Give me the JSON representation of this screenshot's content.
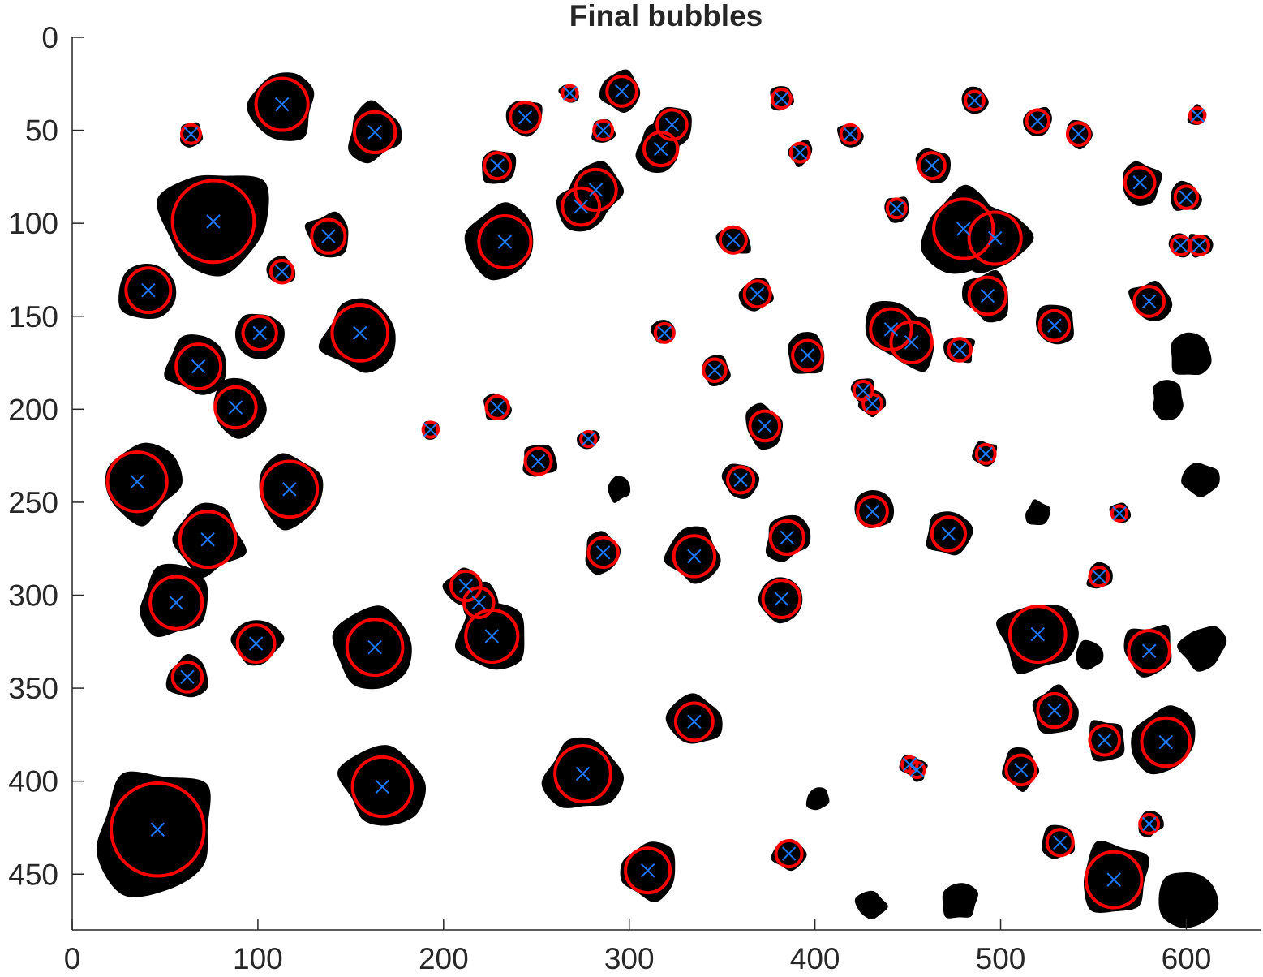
{
  "chart_data": {
    "type": "scatter",
    "title": "Final bubbles",
    "xlabel": "",
    "ylabel": "",
    "xlim": [
      0,
      640
    ],
    "ylim": [
      0,
      480
    ],
    "y_axis_reversed": true,
    "grid": false,
    "x_ticks": [
      0,
      100,
      200,
      300,
      400,
      500,
      600
    ],
    "y_ticks": [
      0,
      50,
      100,
      150,
      200,
      250,
      300,
      350,
      400,
      450
    ],
    "colors": {
      "blob": "#000000",
      "circle": "#ff0000",
      "center_marker": "#1e78ff",
      "axis": "#262626"
    },
    "center_marker": "x",
    "bubbles": [
      {
        "x": 113,
        "y": 36,
        "r": 14
      },
      {
        "x": 64,
        "y": 52,
        "r": 5
      },
      {
        "x": 163,
        "y": 51,
        "r": 11
      },
      {
        "x": 76,
        "y": 99,
        "r": 22
      },
      {
        "x": 138,
        "y": 107,
        "r": 9
      },
      {
        "x": 113,
        "y": 126,
        "r": 6
      },
      {
        "x": 41,
        "y": 136,
        "r": 12
      },
      {
        "x": 101,
        "y": 159,
        "r": 9
      },
      {
        "x": 155,
        "y": 159,
        "r": 15
      },
      {
        "x": 68,
        "y": 177,
        "r": 12
      },
      {
        "x": 88,
        "y": 199,
        "r": 11
      },
      {
        "x": 35,
        "y": 239,
        "r": 16
      },
      {
        "x": 117,
        "y": 243,
        "r": 15
      },
      {
        "x": 73,
        "y": 270,
        "r": 15
      },
      {
        "x": 56,
        "y": 304,
        "r": 14
      },
      {
        "x": 99,
        "y": 326,
        "r": 10
      },
      {
        "x": 62,
        "y": 344,
        "r": 8
      },
      {
        "x": 163,
        "y": 328,
        "r": 15
      },
      {
        "x": 167,
        "y": 403,
        "r": 16
      },
      {
        "x": 46,
        "y": 426,
        "r": 25
      },
      {
        "x": 268,
        "y": 30,
        "r": 4
      },
      {
        "x": 296,
        "y": 29,
        "r": 8
      },
      {
        "x": 244,
        "y": 43,
        "r": 8
      },
      {
        "x": 286,
        "y": 50,
        "r": 5
      },
      {
        "x": 323,
        "y": 47,
        "r": 8
      },
      {
        "x": 317,
        "y": 60,
        "r": 9
      },
      {
        "x": 229,
        "y": 69,
        "r": 7
      },
      {
        "x": 282,
        "y": 82,
        "r": 11
      },
      {
        "x": 274,
        "y": 91,
        "r": 10
      },
      {
        "x": 233,
        "y": 110,
        "r": 14
      },
      {
        "x": 319,
        "y": 159,
        "r": 5
      },
      {
        "x": 193,
        "y": 211,
        "r": 4
      },
      {
        "x": 229,
        "y": 199,
        "r": 6
      },
      {
        "x": 278,
        "y": 216,
        "r": 4
      },
      {
        "x": 251,
        "y": 228,
        "r": 7
      },
      {
        "x": 286,
        "y": 277,
        "r": 8
      },
      {
        "x": 212,
        "y": 295,
        "r": 8
      },
      {
        "x": 219,
        "y": 304,
        "r": 8
      },
      {
        "x": 226,
        "y": 322,
        "r": 14
      },
      {
        "x": 275,
        "y": 396,
        "r": 15
      },
      {
        "x": 310,
        "y": 448,
        "r": 12
      },
      {
        "x": 335,
        "y": 279,
        "r": 11
      },
      {
        "x": 335,
        "y": 368,
        "r": 10
      },
      {
        "x": 382,
        "y": 33,
        "r": 5
      },
      {
        "x": 392,
        "y": 62,
        "r": 5
      },
      {
        "x": 419,
        "y": 52,
        "r": 5
      },
      {
        "x": 356,
        "y": 109,
        "r": 7
      },
      {
        "x": 369,
        "y": 138,
        "r": 7
      },
      {
        "x": 346,
        "y": 179,
        "r": 6
      },
      {
        "x": 396,
        "y": 171,
        "r": 8
      },
      {
        "x": 373,
        "y": 209,
        "r": 8
      },
      {
        "x": 360,
        "y": 238,
        "r": 7
      },
      {
        "x": 385,
        "y": 269,
        "r": 9
      },
      {
        "x": 382,
        "y": 302,
        "r": 10
      },
      {
        "x": 386,
        "y": 439,
        "r": 7
      },
      {
        "x": 444,
        "y": 92,
        "r": 5
      },
      {
        "x": 463,
        "y": 69,
        "r": 7
      },
      {
        "x": 486,
        "y": 34,
        "r": 5
      },
      {
        "x": 480,
        "y": 103,
        "r": 16
      },
      {
        "x": 497,
        "y": 108,
        "r": 14
      },
      {
        "x": 493,
        "y": 139,
        "r": 10
      },
      {
        "x": 441,
        "y": 157,
        "r": 11
      },
      {
        "x": 452,
        "y": 164,
        "r": 11
      },
      {
        "x": 478,
        "y": 168,
        "r": 6
      },
      {
        "x": 426,
        "y": 190,
        "r": 5
      },
      {
        "x": 431,
        "y": 197,
        "r": 5
      },
      {
        "x": 492,
        "y": 224,
        "r": 5
      },
      {
        "x": 431,
        "y": 255,
        "r": 8
      },
      {
        "x": 472,
        "y": 267,
        "r": 9
      },
      {
        "x": 451,
        "y": 391,
        "r": 4
      },
      {
        "x": 455,
        "y": 394,
        "r": 4
      },
      {
        "x": 511,
        "y": 394,
        "r": 8
      },
      {
        "x": 520,
        "y": 45,
        "r": 6
      },
      {
        "x": 542,
        "y": 52,
        "r": 6
      },
      {
        "x": 575,
        "y": 78,
        "r": 8
      },
      {
        "x": 600,
        "y": 86,
        "r": 6
      },
      {
        "x": 606,
        "y": 42,
        "r": 4
      },
      {
        "x": 597,
        "y": 112,
        "r": 5
      },
      {
        "x": 607,
        "y": 112,
        "r": 5
      },
      {
        "x": 580,
        "y": 142,
        "r": 8
      },
      {
        "x": 529,
        "y": 155,
        "r": 8
      },
      {
        "x": 564,
        "y": 256,
        "r": 4
      },
      {
        "x": 553,
        "y": 290,
        "r": 5
      },
      {
        "x": 520,
        "y": 321,
        "r": 15
      },
      {
        "x": 580,
        "y": 330,
        "r": 11
      },
      {
        "x": 529,
        "y": 362,
        "r": 9
      },
      {
        "x": 556,
        "y": 378,
        "r": 8
      },
      {
        "x": 589,
        "y": 379,
        "r": 13
      },
      {
        "x": 580,
        "y": 423,
        "r": 5
      },
      {
        "x": 532,
        "y": 433,
        "r": 7
      },
      {
        "x": 561,
        "y": 453,
        "r": 15
      }
    ],
    "unmatched_blobs": [
      {
        "x": 603,
        "y": 172,
        "r": 9
      },
      {
        "x": 590,
        "y": 195,
        "r": 7
      },
      {
        "x": 608,
        "y": 238,
        "r": 7
      },
      {
        "x": 609,
        "y": 328,
        "r": 9
      },
      {
        "x": 520,
        "y": 256,
        "r": 5
      },
      {
        "x": 547,
        "y": 333,
        "r": 6
      },
      {
        "x": 402,
        "y": 409,
        "r": 5
      },
      {
        "x": 430,
        "y": 467,
        "r": 6
      },
      {
        "x": 478,
        "y": 465,
        "r": 7
      },
      {
        "x": 601,
        "y": 462,
        "r": 12
      },
      {
        "x": 294,
        "y": 243,
        "r": 5
      }
    ]
  }
}
